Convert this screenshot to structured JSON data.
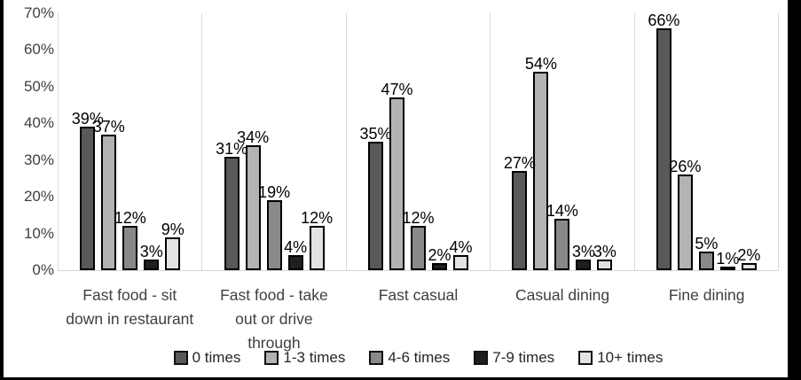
{
  "chart_data": {
    "type": "bar",
    "title": "",
    "categories": [
      "Fast food - sit down in restaurant",
      "Fast food - take out or drive through",
      "Fast casual",
      "Casual dining",
      "Fine dining"
    ],
    "series": [
      {
        "name": "0 times",
        "color": "#595959",
        "values": [
          39,
          31,
          35,
          27,
          66
        ]
      },
      {
        "name": "1-3 times",
        "color": "#b3b3b3",
        "values": [
          37,
          34,
          47,
          54,
          26
        ]
      },
      {
        "name": "4-6 times",
        "color": "#898989",
        "values": [
          12,
          19,
          12,
          14,
          5
        ]
      },
      {
        "name": "7-9 times",
        "color": "#1f1f1f",
        "values": [
          3,
          4,
          2,
          3,
          1
        ]
      },
      {
        "name": "10+ times",
        "color": "#e3e3e3",
        "values": [
          9,
          12,
          4,
          3,
          2
        ]
      }
    ],
    "data_label_suffix": "%",
    "y_axis": {
      "min": 0,
      "max": 70,
      "tick_step": 10,
      "tick_labels": [
        "0%",
        "10%",
        "20%",
        "30%",
        "40%",
        "50%",
        "60%",
        "70%"
      ],
      "grid": false
    },
    "legend_position": "bottom",
    "bar_border_color": "#000000",
    "panel_divider_color": "#d9d9d9",
    "background_color": "#ffffff",
    "frame_color": "#000000"
  }
}
